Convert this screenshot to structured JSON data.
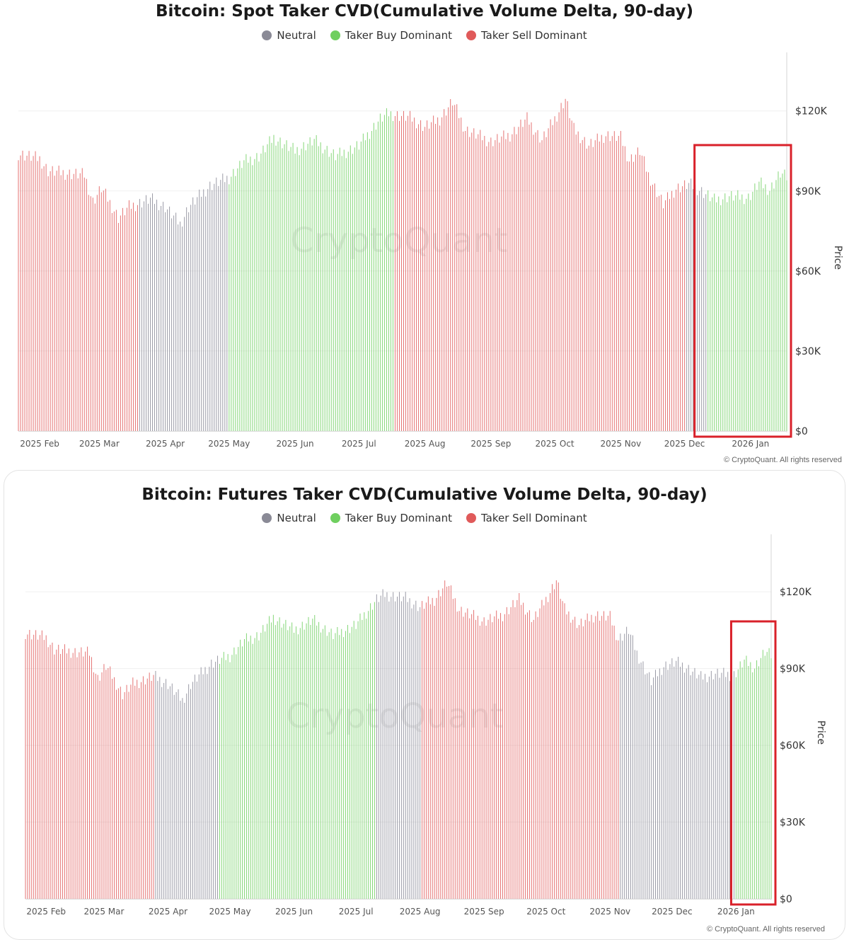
{
  "colors": {
    "neutral": "#8a8a96",
    "buy": "#6fcf5f",
    "sell": "#e05a5a",
    "highlight": "#d9212a",
    "watermark": "#ececec"
  },
  "chart_data": [
    {
      "type": "bar",
      "title": "Bitcoin: Spot Taker CVD(Cumulative Volume Delta, 90-day)",
      "legend": [
        {
          "label": "Neutral",
          "color": "neutral"
        },
        {
          "label": "Taker Buy Dominant",
          "color": "buy"
        },
        {
          "label": "Taker Sell Dominant",
          "color": "sell"
        }
      ],
      "ylabel": "Price",
      "ylim": [
        0,
        130000
      ],
      "yticks": [
        0,
        30000,
        60000,
        90000,
        120000
      ],
      "ytick_labels": [
        "$0",
        "$30K",
        "$60K",
        "$90K",
        "$120K"
      ],
      "x_range": [
        "2025-01-22",
        "2026-01-18"
      ],
      "xticks": [
        "2025-02-01",
        "2025-03-01",
        "2025-04-01",
        "2025-05-01",
        "2025-06-01",
        "2025-07-01",
        "2025-08-01",
        "2025-09-01",
        "2025-10-01",
        "2025-11-01",
        "2025-12-01",
        "2026-01-01"
      ],
      "xtick_labels": [
        "2025 Feb",
        "2025 Mar",
        "2025 Apr",
        "2025 May",
        "2025 Jun",
        "2025 Jul",
        "2025 Aug",
        "2025 Sep",
        "2025 Oct",
        "2025 Nov",
        "2025 Dec",
        "2026 Jan"
      ],
      "price_points": [
        [
          "2025-01-22",
          104000
        ],
        [
          "2025-02-01",
          102000
        ],
        [
          "2025-02-05",
          97500
        ],
        [
          "2025-02-15",
          96500
        ],
        [
          "2025-02-22",
          96000
        ],
        [
          "2025-02-26",
          86000
        ],
        [
          "2025-03-02",
          91000
        ],
        [
          "2025-03-05",
          87000
        ],
        [
          "2025-03-10",
          80000
        ],
        [
          "2025-03-15",
          84000
        ],
        [
          "2025-03-25",
          87000
        ],
        [
          "2025-04-01",
          84000
        ],
        [
          "2025-04-08",
          77500
        ],
        [
          "2025-04-12",
          84000
        ],
        [
          "2025-04-22",
          92000
        ],
        [
          "2025-05-01",
          95000
        ],
        [
          "2025-05-08",
          101000
        ],
        [
          "2025-05-15",
          103000
        ],
        [
          "2025-05-22",
          110000
        ],
        [
          "2025-06-01",
          105000
        ],
        [
          "2025-06-10",
          109000
        ],
        [
          "2025-06-20",
          103000
        ],
        [
          "2025-07-01",
          107000
        ],
        [
          "2025-07-11",
          117000
        ],
        [
          "2025-07-15",
          119000
        ],
        [
          "2025-07-25",
          117500
        ],
        [
          "2025-08-01",
          114000
        ],
        [
          "2025-08-08",
          117000
        ],
        [
          "2025-08-14",
          123500
        ],
        [
          "2025-08-20",
          113000
        ],
        [
          "2025-09-01",
          108500
        ],
        [
          "2025-09-10",
          111000
        ],
        [
          "2025-09-18",
          117000
        ],
        [
          "2025-09-25",
          109000
        ],
        [
          "2025-10-01",
          117000
        ],
        [
          "2025-10-06",
          124500
        ],
        [
          "2025-10-10",
          113000
        ],
        [
          "2025-10-17",
          107000
        ],
        [
          "2025-10-25",
          111000
        ],
        [
          "2025-11-01",
          110000
        ],
        [
          "2025-11-05",
          101500
        ],
        [
          "2025-11-10",
          105000
        ],
        [
          "2025-11-14",
          96000
        ],
        [
          "2025-11-21",
          85000
        ],
        [
          "2025-11-27",
          91000
        ],
        [
          "2025-12-03",
          92500
        ],
        [
          "2025-12-08",
          90500
        ],
        [
          "2025-12-15",
          86500
        ],
        [
          "2025-12-22",
          88000
        ],
        [
          "2025-12-31",
          87500
        ],
        [
          "2026-01-05",
          93000
        ],
        [
          "2026-01-10",
          90500
        ],
        [
          "2026-01-15",
          96500
        ],
        [
          "2026-01-18",
          95000
        ]
      ],
      "regime_segments": [
        {
          "from": "2025-01-22",
          "to": "2025-03-19",
          "label": "Taker Sell Dominant"
        },
        {
          "from": "2025-03-20",
          "to": "2025-04-30",
          "label": "Neutral"
        },
        {
          "from": "2025-05-01",
          "to": "2025-07-17",
          "label": "Taker Buy Dominant"
        },
        {
          "from": "2025-07-18",
          "to": "2025-12-01",
          "label": "Taker Sell Dominant"
        },
        {
          "from": "2025-12-02",
          "to": "2025-12-11",
          "label": "Neutral"
        },
        {
          "from": "2025-12-12",
          "to": "2026-01-18",
          "label": "Taker Buy Dominant"
        }
      ],
      "highlight_range": [
        "2025-12-07",
        "2026-01-18"
      ],
      "watermark": "CryptoQuant",
      "copyright": "© CryptoQuant. All rights reserved"
    },
    {
      "type": "bar",
      "title": "Bitcoin: Futures Taker CVD(Cumulative Volume Delta, 90-day)",
      "legend": [
        {
          "label": "Neutral",
          "color": "neutral"
        },
        {
          "label": "Taker Buy Dominant",
          "color": "buy"
        },
        {
          "label": "Taker Sell Dominant",
          "color": "sell"
        }
      ],
      "ylabel": "Price",
      "ylim": [
        0,
        130000
      ],
      "yticks": [
        0,
        30000,
        60000,
        90000,
        120000
      ],
      "ytick_labels": [
        "$0",
        "$30K",
        "$60K",
        "$90K",
        "$120K"
      ],
      "x_range": [
        "2025-01-22",
        "2026-01-18"
      ],
      "xticks": [
        "2025-02-01",
        "2025-03-01",
        "2025-04-01",
        "2025-05-01",
        "2025-06-01",
        "2025-07-01",
        "2025-08-01",
        "2025-09-01",
        "2025-10-01",
        "2025-11-01",
        "2025-12-01",
        "2026-01-01"
      ],
      "xtick_labels": [
        "2025 Feb",
        "2025 Mar",
        "2025 Apr",
        "2025 May",
        "2025 Jun",
        "2025 Jul",
        "2025 Aug",
        "2025 Sep",
        "2025 Oct",
        "2025 Nov",
        "2025 Dec",
        "2026 Jan"
      ],
      "price_points": [
        [
          "2025-01-22",
          104000
        ],
        [
          "2025-02-01",
          102000
        ],
        [
          "2025-02-05",
          97500
        ],
        [
          "2025-02-15",
          96500
        ],
        [
          "2025-02-22",
          96000
        ],
        [
          "2025-02-26",
          86000
        ],
        [
          "2025-03-02",
          91000
        ],
        [
          "2025-03-05",
          87000
        ],
        [
          "2025-03-10",
          80000
        ],
        [
          "2025-03-15",
          84000
        ],
        [
          "2025-03-25",
          87000
        ],
        [
          "2025-04-01",
          84000
        ],
        [
          "2025-04-08",
          77500
        ],
        [
          "2025-04-12",
          84000
        ],
        [
          "2025-04-22",
          92000
        ],
        [
          "2025-05-01",
          95000
        ],
        [
          "2025-05-08",
          101000
        ],
        [
          "2025-05-15",
          103000
        ],
        [
          "2025-05-22",
          110000
        ],
        [
          "2025-06-01",
          105000
        ],
        [
          "2025-06-10",
          109000
        ],
        [
          "2025-06-20",
          103000
        ],
        [
          "2025-07-01",
          107000
        ],
        [
          "2025-07-11",
          117000
        ],
        [
          "2025-07-15",
          119000
        ],
        [
          "2025-07-25",
          117500
        ],
        [
          "2025-08-01",
          114000
        ],
        [
          "2025-08-08",
          117000
        ],
        [
          "2025-08-14",
          123500
        ],
        [
          "2025-08-20",
          113000
        ],
        [
          "2025-09-01",
          108500
        ],
        [
          "2025-09-10",
          111000
        ],
        [
          "2025-09-18",
          117000
        ],
        [
          "2025-09-25",
          109000
        ],
        [
          "2025-10-01",
          117000
        ],
        [
          "2025-10-06",
          124500
        ],
        [
          "2025-10-10",
          113000
        ],
        [
          "2025-10-17",
          107000
        ],
        [
          "2025-10-25",
          111000
        ],
        [
          "2025-11-01",
          110000
        ],
        [
          "2025-11-05",
          101500
        ],
        [
          "2025-11-10",
          105000
        ],
        [
          "2025-11-14",
          96000
        ],
        [
          "2025-11-21",
          85000
        ],
        [
          "2025-11-27",
          91000
        ],
        [
          "2025-12-03",
          92500
        ],
        [
          "2025-12-08",
          90500
        ],
        [
          "2025-12-15",
          86500
        ],
        [
          "2025-12-22",
          88000
        ],
        [
          "2025-12-31",
          87500
        ],
        [
          "2026-01-05",
          93000
        ],
        [
          "2026-01-10",
          90500
        ],
        [
          "2026-01-15",
          96500
        ],
        [
          "2026-01-18",
          95000
        ]
      ],
      "regime_segments": [
        {
          "from": "2025-01-22",
          "to": "2025-03-25",
          "label": "Taker Sell Dominant"
        },
        {
          "from": "2025-03-26",
          "to": "2025-04-25",
          "label": "Neutral"
        },
        {
          "from": "2025-04-26",
          "to": "2025-07-10",
          "label": "Taker Buy Dominant"
        },
        {
          "from": "2025-07-11",
          "to": "2025-08-01",
          "label": "Neutral"
        },
        {
          "from": "2025-08-02",
          "to": "2025-11-05",
          "label": "Taker Sell Dominant"
        },
        {
          "from": "2025-11-06",
          "to": "2025-12-31",
          "label": "Neutral"
        },
        {
          "from": "2026-01-01",
          "to": "2026-01-18",
          "label": "Taker Buy Dominant"
        }
      ],
      "highlight_range": [
        "2025-12-31",
        "2026-01-18"
      ],
      "watermark": "CryptoQuant",
      "copyright": "© CryptoQuant. All rights reserved"
    }
  ]
}
